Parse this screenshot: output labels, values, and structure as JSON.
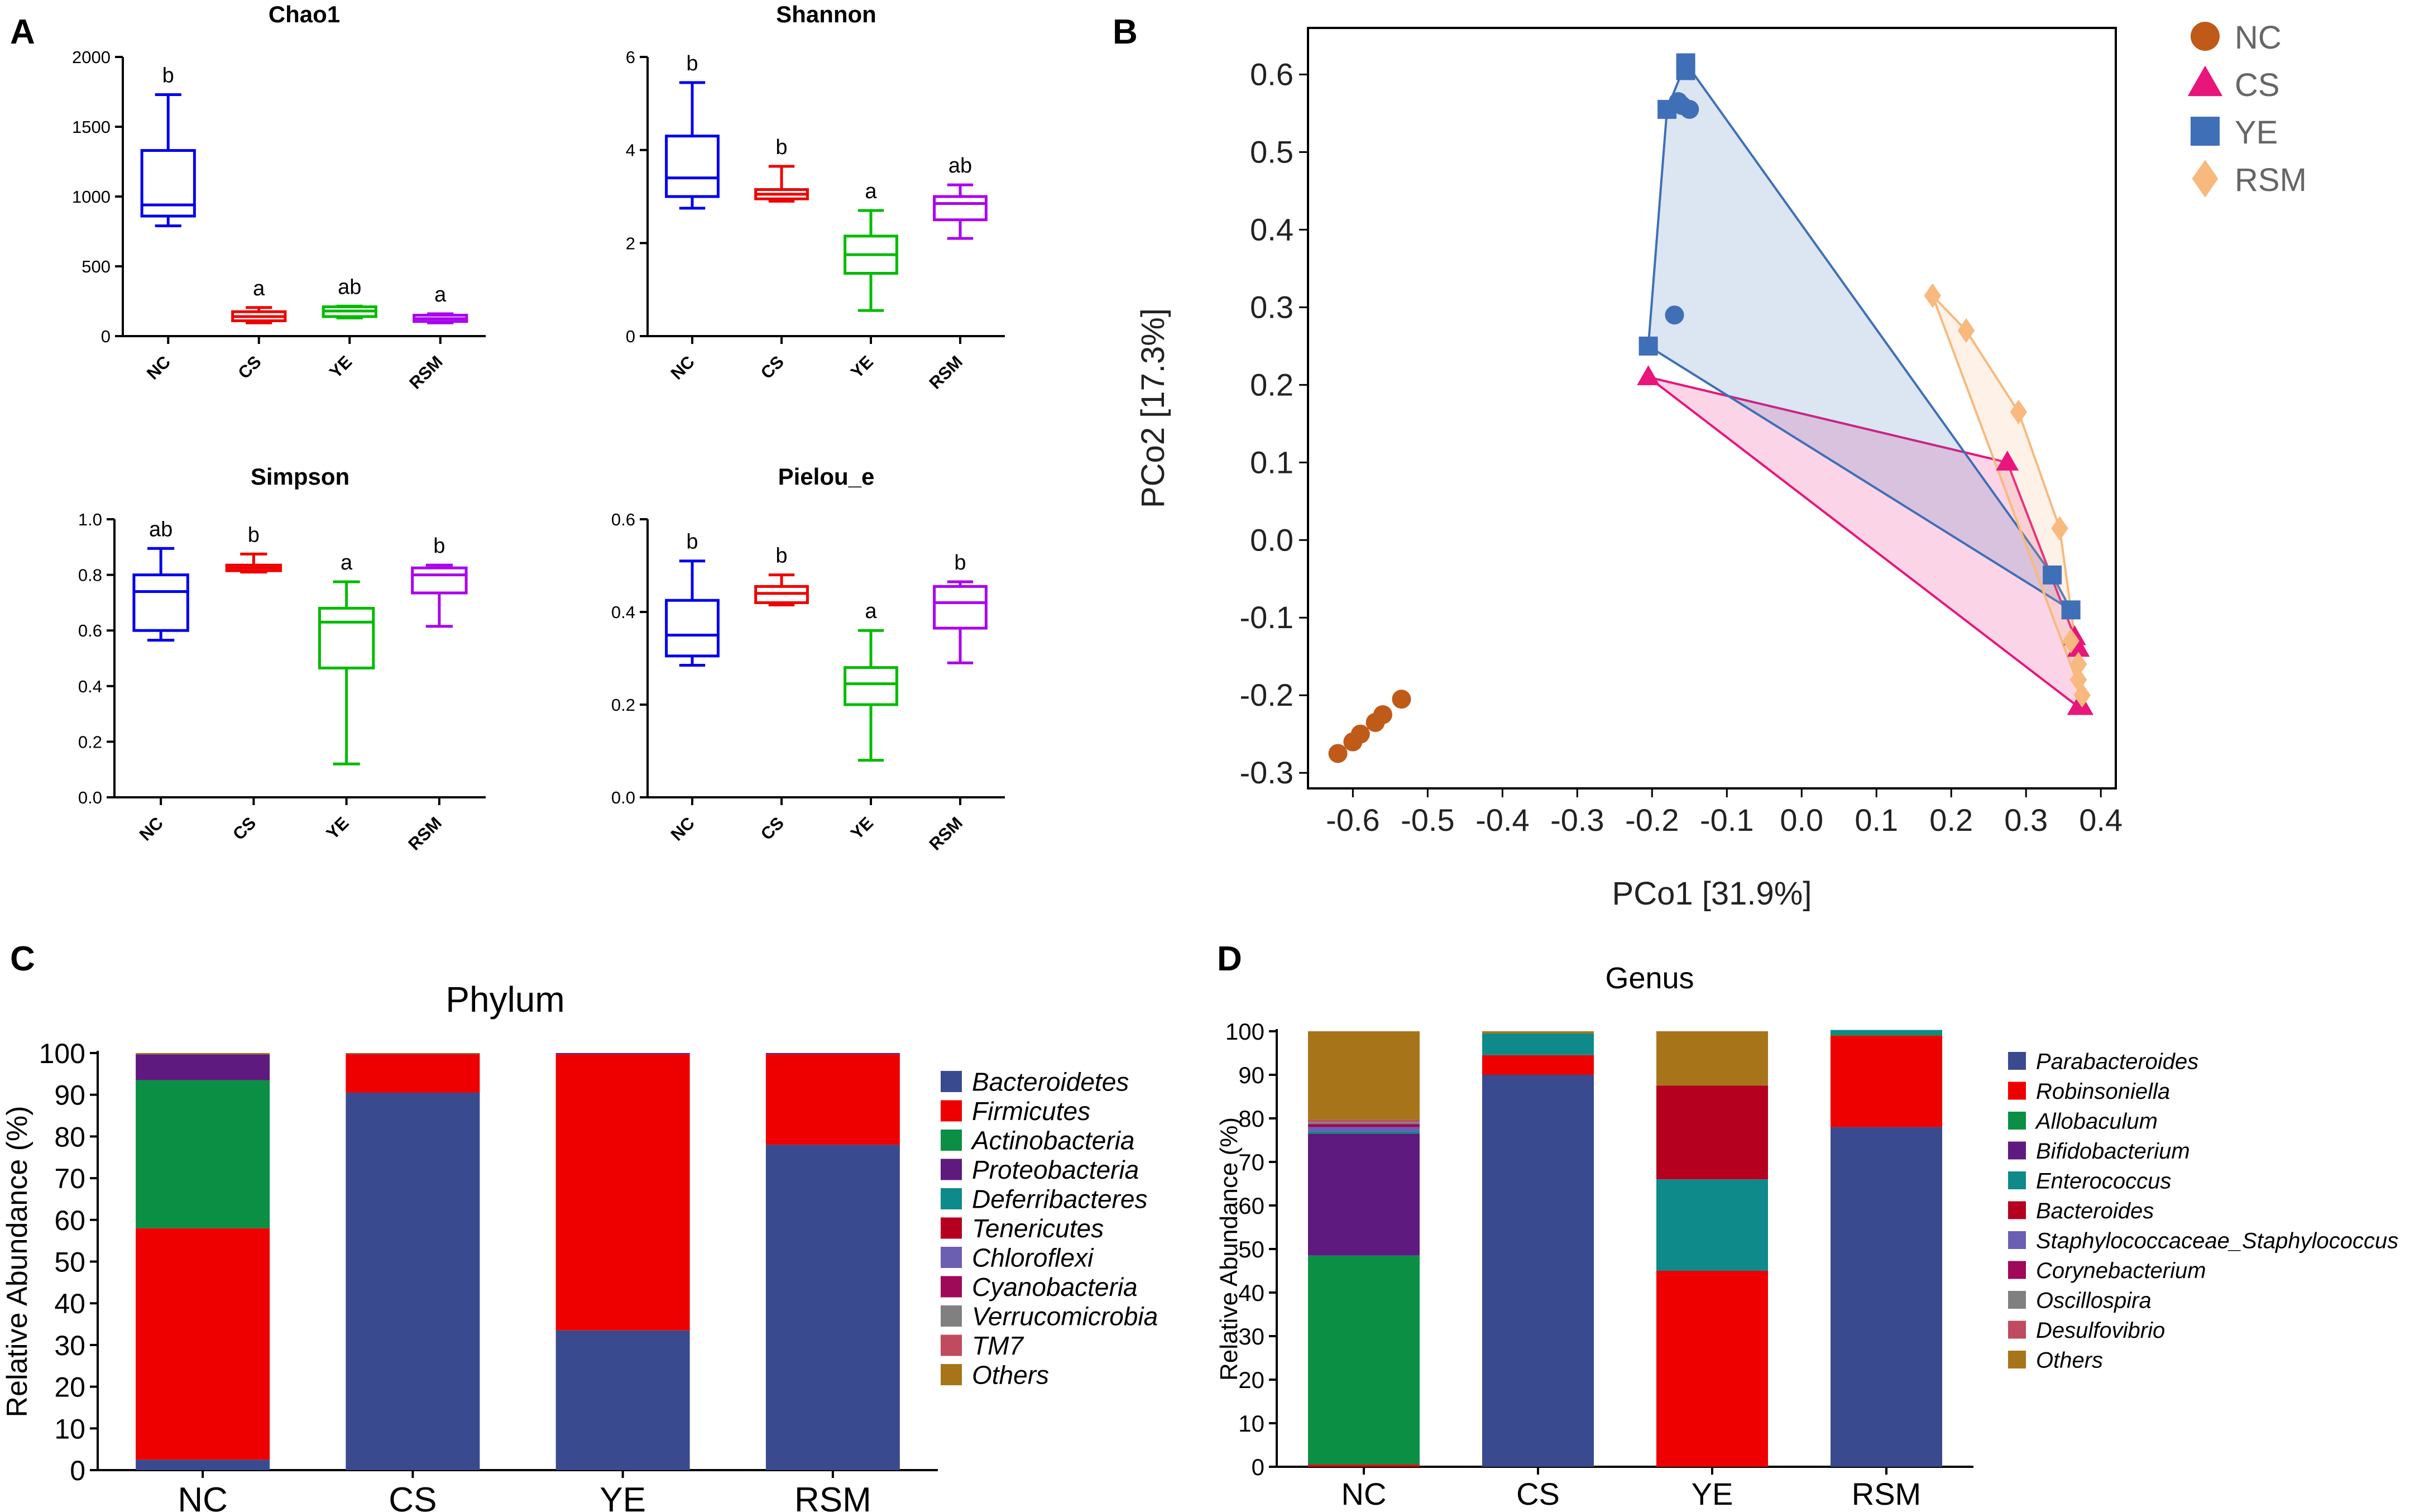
{
  "panel_labels": [
    "A",
    "B",
    "C",
    "D"
  ],
  "colors": {
    "NC": "#0000ee",
    "CS": "#ee0000",
    "YE": "#00bb00",
    "RSM": "#aa00ee",
    "pcoa_NC": "#c05a18",
    "pcoa_CS": "#e8157b",
    "pcoa_YE": "#3f6fb7",
    "pcoa_RSM": "#f7b97e"
  },
  "chart_data": [
    {
      "id": "chao1",
      "type": "box",
      "title": "Chao1",
      "categories": [
        "NC",
        "CS",
        "YE",
        "RSM"
      ],
      "ylim": [
        0,
        2000
      ],
      "yticks": [
        0,
        500,
        1000,
        1500,
        2000
      ],
      "boxes": [
        {
          "min": 790,
          "q1": 860,
          "median": 940,
          "q3": 1330,
          "max": 1730,
          "label": "b"
        },
        {
          "min": 95,
          "q1": 110,
          "median": 140,
          "q3": 175,
          "max": 205,
          "label": "a"
        },
        {
          "min": 130,
          "q1": 140,
          "median": 180,
          "q3": 210,
          "max": 215,
          "label": "ab"
        },
        {
          "min": 95,
          "q1": 105,
          "median": 125,
          "q3": 150,
          "max": 160,
          "label": "a"
        }
      ]
    },
    {
      "id": "shannon",
      "type": "box",
      "title": "Shannon",
      "categories": [
        "NC",
        "CS",
        "YE",
        "RSM"
      ],
      "ylim": [
        0,
        6
      ],
      "yticks": [
        0,
        2,
        4,
        6
      ],
      "boxes": [
        {
          "min": 2.75,
          "q1": 3.0,
          "median": 3.4,
          "q3": 4.3,
          "max": 5.45,
          "label": "b"
        },
        {
          "min": 2.9,
          "q1": 2.95,
          "median": 3.05,
          "q3": 3.15,
          "max": 3.65,
          "label": "b"
        },
        {
          "min": 0.55,
          "q1": 1.35,
          "median": 1.75,
          "q3": 2.15,
          "max": 2.7,
          "label": "a"
        },
        {
          "min": 2.1,
          "q1": 2.5,
          "median": 2.85,
          "q3": 3.0,
          "max": 3.25,
          "label": "ab"
        }
      ]
    },
    {
      "id": "simpson",
      "type": "box",
      "title": "Simpson",
      "categories": [
        "NC",
        "CS",
        "YE",
        "RSM"
      ],
      "ylim": [
        0,
        1
      ],
      "yticks": [
        0.0,
        0.2,
        0.4,
        0.6,
        0.8,
        1.0
      ],
      "boxes": [
        {
          "min": 0.565,
          "q1": 0.6,
          "median": 0.74,
          "q3": 0.8,
          "max": 0.895,
          "label": "ab"
        },
        {
          "min": 0.81,
          "q1": 0.815,
          "median": 0.825,
          "q3": 0.835,
          "max": 0.875,
          "label": "b"
        },
        {
          "min": 0.12,
          "q1": 0.465,
          "median": 0.63,
          "q3": 0.68,
          "max": 0.775,
          "label": "a"
        },
        {
          "min": 0.615,
          "q1": 0.735,
          "median": 0.8,
          "q3": 0.825,
          "max": 0.835,
          "label": "b"
        }
      ]
    },
    {
      "id": "pielou",
      "type": "box",
      "title": "Pielou_e",
      "categories": [
        "NC",
        "CS",
        "YE",
        "RSM"
      ],
      "ylim": [
        0,
        0.6
      ],
      "yticks": [
        0.0,
        0.2,
        0.4,
        0.6
      ],
      "boxes": [
        {
          "min": 0.285,
          "q1": 0.305,
          "median": 0.35,
          "q3": 0.425,
          "max": 0.51,
          "label": "b"
        },
        {
          "min": 0.415,
          "q1": 0.42,
          "median": 0.44,
          "q3": 0.455,
          "max": 0.48,
          "label": "b"
        },
        {
          "min": 0.08,
          "q1": 0.2,
          "median": 0.245,
          "q3": 0.28,
          "max": 0.36,
          "label": "a"
        },
        {
          "min": 0.29,
          "q1": 0.365,
          "median": 0.42,
          "q3": 0.455,
          "max": 0.465,
          "label": "b"
        }
      ]
    },
    {
      "id": "pcoa",
      "type": "scatter",
      "xlabel": "PCo1 [31.9%]",
      "ylabel": "PCo2 [17.3%]",
      "xlim": [
        -0.66,
        0.42
      ],
      "ylim": [
        -0.32,
        0.66
      ],
      "xticks": [
        -0.6,
        -0.5,
        -0.4,
        -0.3,
        -0.2,
        -0.1,
        0.0,
        0.1,
        0.2,
        0.3,
        0.4
      ],
      "xtick_labels": [
        "-0.6",
        "-0.5",
        "-0.4",
        "-0.3",
        "-0.2",
        "-0.1",
        "0.0",
        "0.1",
        "0.2",
        "0.3",
        "0.4"
      ],
      "yticks": [
        -0.3,
        -0.2,
        -0.1,
        0.0,
        0.1,
        0.2,
        0.3,
        0.4,
        0.5,
        0.6
      ],
      "ytick_labels": [
        "-0.3",
        "-0.2",
        "-0.1",
        "0.0",
        "0.1",
        "0.2",
        "0.3",
        "0.4",
        "0.5",
        "0.6"
      ],
      "legend": [
        "NC",
        "CS",
        "YE",
        "RSM"
      ],
      "groups": [
        {
          "name": "CS",
          "marker": "triangle",
          "hull": true,
          "points": [
            [
              -0.205,
              0.21
            ],
            [
              0.275,
              0.1
            ],
            [
              0.365,
              -0.125
            ],
            [
              0.37,
              -0.14
            ],
            [
              0.37,
              -0.215
            ],
            [
              0.375,
              -0.215
            ]
          ]
        },
        {
          "name": "YE",
          "marker": "square",
          "hull": true,
          "points": [
            [
              -0.205,
              0.25
            ],
            [
              -0.18,
              0.555
            ],
            [
              -0.155,
              0.605
            ],
            [
              -0.155,
              0.615
            ],
            [
              0.335,
              -0.045
            ],
            [
              0.36,
              -0.09
            ]
          ]
        },
        {
          "name": "YE_extra",
          "color_key": "YE",
          "marker": "circle",
          "hull": false,
          "points": [
            [
              -0.17,
              0.29
            ],
            [
              -0.165,
              0.565
            ],
            [
              -0.16,
              0.56
            ],
            [
              -0.15,
              0.555
            ]
          ]
        },
        {
          "name": "RSM",
          "marker": "diamond",
          "hull": true,
          "points": [
            [
              0.175,
              0.315
            ],
            [
              0.22,
              0.27
            ],
            [
              0.29,
              0.165
            ],
            [
              0.345,
              0.015
            ],
            [
              0.36,
              -0.13
            ],
            [
              0.37,
              -0.16
            ],
            [
              0.37,
              -0.18
            ],
            [
              0.375,
              -0.2
            ]
          ]
        },
        {
          "name": "NC",
          "marker": "circle",
          "hull": false,
          "points": [
            [
              -0.62,
              -0.275
            ],
            [
              -0.6,
              -0.26
            ],
            [
              -0.59,
              -0.25
            ],
            [
              -0.57,
              -0.235
            ],
            [
              -0.56,
              -0.225
            ],
            [
              -0.535,
              -0.205
            ]
          ]
        }
      ]
    },
    {
      "id": "phylum",
      "type": "stacked_bar",
      "title": "Phylum",
      "ylabel": "Relative Abundance (%)",
      "categories": [
        "NC",
        "CS",
        "YE",
        "RSM"
      ],
      "ylim": [
        0,
        100
      ],
      "yticks": [
        0,
        10,
        20,
        30,
        40,
        50,
        60,
        70,
        80,
        90,
        100
      ],
      "series": [
        {
          "name": "Bacteroidetes",
          "color": "#3a4a8f",
          "values": [
            2.5,
            90.5,
            33.5,
            78
          ]
        },
        {
          "name": "Firmicutes",
          "color": "#ee0000",
          "values": [
            55.5,
            9.2,
            66.2,
            21.7
          ]
        },
        {
          "name": "Actinobacteria",
          "color": "#0a8f45",
          "values": [
            35.5,
            0,
            0,
            0
          ]
        },
        {
          "name": "Proteobacteria",
          "color": "#5e1a7e",
          "values": [
            6.2,
            0.1,
            0.3,
            0.3
          ]
        },
        {
          "name": "Deferribacteres",
          "color": "#0e8a8a",
          "values": [
            0,
            0,
            0,
            0
          ]
        },
        {
          "name": "Tenericutes",
          "color": "#b5001f",
          "values": [
            0,
            0,
            0,
            0
          ]
        },
        {
          "name": "Chloroflexi",
          "color": "#6b5fb3",
          "values": [
            0,
            0,
            0,
            0
          ]
        },
        {
          "name": "Cyanobacteria",
          "color": "#a00858",
          "values": [
            0,
            0,
            0,
            0
          ]
        },
        {
          "name": "Verrucomicrobia",
          "color": "#808080",
          "values": [
            0,
            0,
            0,
            0
          ]
        },
        {
          "name": "TM7",
          "color": "#c04a5e",
          "values": [
            0,
            0,
            0,
            0
          ]
        },
        {
          "name": "Others",
          "color": "#a8741a",
          "values": [
            0.3,
            0.2,
            0,
            0
          ]
        }
      ]
    },
    {
      "id": "genus",
      "type": "stacked_bar",
      "title": "Genus",
      "ylabel": "Relative Abundance (%)",
      "categories": [
        "NC",
        "CS",
        "YE",
        "RSM"
      ],
      "ylim": [
        0,
        100
      ],
      "yticks": [
        0,
        10,
        20,
        30,
        40,
        50,
        60,
        70,
        80,
        90,
        100
      ],
      "series": [
        {
          "name": "Parabacteroides",
          "color": "#3a4a8f",
          "values": [
            0,
            90,
            0,
            78
          ]
        },
        {
          "name": "Robinsoniella",
          "color": "#ee0000",
          "values": [
            0.5,
            4.5,
            45,
            21
          ]
        },
        {
          "name": "Allobaculum",
          "color": "#0a8f45",
          "values": [
            48,
            0,
            0,
            0.3
          ]
        },
        {
          "name": "Bifidobacterium",
          "color": "#5e1a7e",
          "values": [
            28,
            0,
            0,
            0
          ]
        },
        {
          "name": "Enterococcus",
          "color": "#0e8a8a",
          "values": [
            0.5,
            5,
            21,
            1
          ]
        },
        {
          "name": "Bacteroides",
          "color": "#b5001f",
          "values": [
            0,
            0,
            21.5,
            0
          ]
        },
        {
          "name": "Staphylococcaceae_Staphylococcus",
          "color": "#6b5fb3",
          "values": [
            1,
            0,
            0,
            0
          ]
        },
        {
          "name": "Corynebacterium",
          "color": "#a00858",
          "values": [
            0.7,
            0,
            0,
            0
          ]
        },
        {
          "name": "Oscillospira",
          "color": "#808080",
          "values": [
            0.5,
            0,
            0,
            0
          ]
        },
        {
          "name": "Desulfovibrio",
          "color": "#c04a5e",
          "values": [
            0.5,
            0,
            0,
            0
          ]
        },
        {
          "name": "Others",
          "color": "#a8741a",
          "values": [
            20.3,
            0.5,
            12.5,
            0
          ]
        }
      ]
    }
  ]
}
